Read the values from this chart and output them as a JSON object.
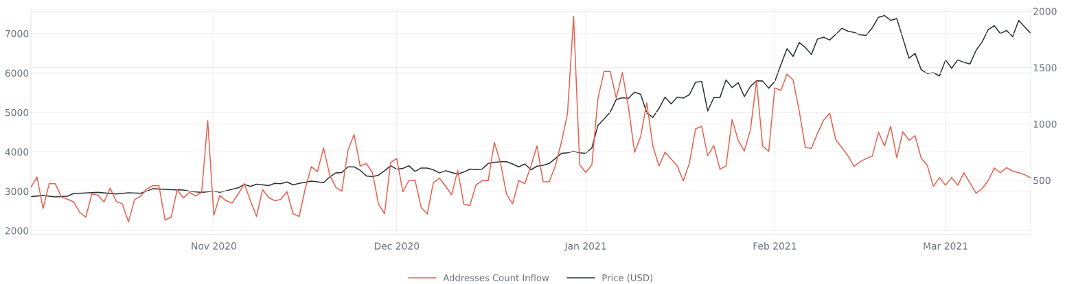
{
  "chart_data": {
    "type": "line",
    "xlim": [
      "2020-10-02",
      "2021-03-15"
    ],
    "xticks": [
      {
        "value": "2020-11-01",
        "label": "Nov 2020"
      },
      {
        "value": "2020-12-01",
        "label": "Dec 2020"
      },
      {
        "value": "2021-01-01",
        "label": "Jan 2021"
      },
      {
        "value": "2021-02-01",
        "label": "Feb 2021"
      },
      {
        "value": "2021-03-01",
        "label": "Mar 2021"
      }
    ],
    "ylim": [
      1900,
      7600
    ],
    "yticks": [
      2000,
      3000,
      4000,
      5000,
      6000,
      7000
    ],
    "y2lim": [
      18,
      2012
    ],
    "y2ticks": [
      500,
      1000,
      1500,
      2000
    ],
    "grid": true,
    "legend": "bottom",
    "marker": "none",
    "line_style": "solid",
    "series": [
      {
        "name": "Addresses Count Inflow",
        "color": "#ea5f4c",
        "axis": "y",
        "x": [
          "2020-10-02",
          "2020-10-03",
          "2020-10-04",
          "2020-10-05",
          "2020-10-06",
          "2020-10-07",
          "2020-10-08",
          "2020-10-09",
          "2020-10-10",
          "2020-10-11",
          "2020-10-12",
          "2020-10-13",
          "2020-10-14",
          "2020-10-15",
          "2020-10-16",
          "2020-10-17",
          "2020-10-18",
          "2020-10-19",
          "2020-10-20",
          "2020-10-21",
          "2020-10-22",
          "2020-10-23",
          "2020-10-24",
          "2020-10-25",
          "2020-10-26",
          "2020-10-27",
          "2020-10-28",
          "2020-10-29",
          "2020-10-30",
          "2020-10-31",
          "2020-11-01",
          "2020-11-02",
          "2020-11-03",
          "2020-11-04",
          "2020-11-05",
          "2020-11-06",
          "2020-11-07",
          "2020-11-08",
          "2020-11-09",
          "2020-11-10",
          "2020-11-11",
          "2020-11-12",
          "2020-11-13",
          "2020-11-14",
          "2020-11-15",
          "2020-11-16",
          "2020-11-17",
          "2020-11-18",
          "2020-11-19",
          "2020-11-20",
          "2020-11-21",
          "2020-11-22",
          "2020-11-23",
          "2020-11-24",
          "2020-11-25",
          "2020-11-26",
          "2020-11-27",
          "2020-11-28",
          "2020-11-29",
          "2020-11-30",
          "2020-12-01",
          "2020-12-02",
          "2020-12-03",
          "2020-12-04",
          "2020-12-05",
          "2020-12-06",
          "2020-12-07",
          "2020-12-08",
          "2020-12-09",
          "2020-12-10",
          "2020-12-11",
          "2020-12-12",
          "2020-12-13",
          "2020-12-14",
          "2020-12-15",
          "2020-12-16",
          "2020-12-17",
          "2020-12-18",
          "2020-12-19",
          "2020-12-20",
          "2020-12-21",
          "2020-12-22",
          "2020-12-23",
          "2020-12-24",
          "2020-12-25",
          "2020-12-26",
          "2020-12-27",
          "2020-12-28",
          "2020-12-29",
          "2020-12-30",
          "2020-12-31",
          "2021-01-01",
          "2021-01-02",
          "2021-01-03",
          "2021-01-04",
          "2021-01-05",
          "2021-01-06",
          "2021-01-07",
          "2021-01-08",
          "2021-01-09",
          "2021-01-10",
          "2021-01-11",
          "2021-01-12",
          "2021-01-13",
          "2021-01-14",
          "2021-01-15",
          "2021-01-16",
          "2021-01-17",
          "2021-01-18",
          "2021-01-19",
          "2021-01-20",
          "2021-01-21",
          "2021-01-22",
          "2021-01-23",
          "2021-01-24",
          "2021-01-25",
          "2021-01-26",
          "2021-01-27",
          "2021-01-28",
          "2021-01-29",
          "2021-01-30",
          "2021-01-31",
          "2021-02-01",
          "2021-02-02",
          "2021-02-03",
          "2021-02-04",
          "2021-02-05",
          "2021-02-06",
          "2021-02-07",
          "2021-02-08",
          "2021-02-09",
          "2021-02-10",
          "2021-02-11",
          "2021-02-13",
          "2021-02-14",
          "2021-02-15",
          "2021-02-16",
          "2021-02-17",
          "2021-02-18",
          "2021-02-19",
          "2021-02-20",
          "2021-02-21",
          "2021-02-22",
          "2021-02-23",
          "2021-02-24",
          "2021-02-25",
          "2021-02-26",
          "2021-02-27",
          "2021-02-28",
          "2021-03-01",
          "2021-03-02",
          "2021-03-03",
          "2021-03-04",
          "2021-03-05",
          "2021-03-06",
          "2021-03-07",
          "2021-03-08",
          "2021-03-09",
          "2021-03-10",
          "2021-03-11",
          "2021-03-12",
          "2021-03-13",
          "2021-03-14",
          "2021-03-15"
        ],
        "values": [
          3100,
          3360,
          2560,
          3190,
          3190,
          2850,
          2800,
          2730,
          2470,
          2340,
          2930,
          2900,
          2730,
          3080,
          2740,
          2680,
          2220,
          2790,
          2870,
          3060,
          3140,
          3140,
          2270,
          2340,
          3040,
          2830,
          2970,
          2880,
          2970,
          4790,
          2390,
          2890,
          2760,
          2700,
          2930,
          3190,
          2760,
          2360,
          3040,
          2840,
          2760,
          2790,
          2990,
          2430,
          2360,
          3070,
          3620,
          3500,
          4100,
          3420,
          3100,
          3000,
          4040,
          4440,
          3640,
          3700,
          3480,
          2680,
          2430,
          3730,
          3830,
          2990,
          3270,
          3280,
          2590,
          2420,
          3220,
          3330,
          3130,
          2910,
          3530,
          2670,
          2640,
          3160,
          3270,
          3270,
          4240,
          3730,
          2930,
          2680,
          3270,
          3190,
          3640,
          4150,
          3240,
          3240,
          3640,
          4240,
          4960,
          7440,
          3670,
          3480,
          3670,
          5360,
          6040,
          6040,
          5360,
          6010,
          5130,
          3990,
          4390,
          5240,
          4150,
          3640,
          3990,
          3820,
          3640,
          3260,
          3720,
          4580,
          4650,
          3900,
          4160,
          3560,
          3640,
          4820,
          4290,
          4020,
          4560,
          5800,
          4150,
          4010,
          5620,
          5560,
          5970,
          5820,
          5040,
          4110,
          4090,
          4470,
          4800,
          4980,
          4310,
          3900,
          3630,
          3750,
          3830,
          3890,
          4500,
          4150,
          4650,
          3850,
          4510,
          4290,
          4410,
          3840,
          3660,
          3120,
          3350,
          3150,
          3350,
          3150,
          3470,
          3210,
          2950,
          3070,
          3270,
          3590,
          3470,
          3600,
          3510,
          3470,
          3420,
          3330
        ]
      },
      {
        "name": "Price (USD)",
        "color": "#2b2f36",
        "axis": "y2",
        "x": [
          "2020-10-02",
          "2020-10-04",
          "2020-10-06",
          "2020-10-08",
          "2020-10-09",
          "2020-10-10",
          "2020-10-13",
          "2020-10-16",
          "2020-10-18",
          "2020-10-20",
          "2020-10-22",
          "2020-10-24",
          "2020-10-27",
          "2020-10-28",
          "2020-10-30",
          "2020-11-01",
          "2020-11-02",
          "2020-11-05",
          "2020-11-06",
          "2020-11-07",
          "2020-11-08",
          "2020-11-10",
          "2020-11-11",
          "2020-11-12",
          "2020-11-13",
          "2020-11-14",
          "2020-11-15",
          "2020-11-17",
          "2020-11-19",
          "2020-11-20",
          "2020-11-21",
          "2020-11-22",
          "2020-11-23",
          "2020-11-24",
          "2020-11-25",
          "2020-11-26",
          "2020-11-27",
          "2020-11-28",
          "2020-11-29",
          "2020-11-30",
          "2020-12-01",
          "2020-12-02",
          "2020-12-03",
          "2020-12-04",
          "2020-12-05",
          "2020-12-06",
          "2020-12-07",
          "2020-12-08",
          "2020-12-09",
          "2020-12-10",
          "2020-12-11",
          "2020-12-12",
          "2020-12-13",
          "2020-12-14",
          "2020-12-15",
          "2020-12-16",
          "2020-12-17",
          "2020-12-18",
          "2020-12-19",
          "2020-12-20",
          "2020-12-21",
          "2020-12-22",
          "2020-12-23",
          "2020-12-24",
          "2020-12-25",
          "2020-12-26",
          "2020-12-27",
          "2020-12-28",
          "2020-12-29",
          "2020-12-30",
          "2020-12-31",
          "2021-01-01",
          "2021-01-02",
          "2021-01-03",
          "2021-01-04",
          "2021-01-05",
          "2021-01-06",
          "2021-01-07",
          "2021-01-08",
          "2021-01-09",
          "2021-01-10",
          "2021-01-11",
          "2021-01-12",
          "2021-01-13",
          "2021-01-14",
          "2021-01-15",
          "2021-01-16",
          "2021-01-17",
          "2021-01-18",
          "2021-01-19",
          "2021-01-20",
          "2021-01-21",
          "2021-01-22",
          "2021-01-23",
          "2021-01-24",
          "2021-01-25",
          "2021-01-26",
          "2021-01-27",
          "2021-01-28",
          "2021-01-29",
          "2021-01-30",
          "2021-01-31",
          "2021-02-01",
          "2021-02-02",
          "2021-02-03",
          "2021-02-04",
          "2021-02-05",
          "2021-02-06",
          "2021-02-07",
          "2021-02-08",
          "2021-02-09",
          "2021-02-10",
          "2021-02-11",
          "2021-02-12",
          "2021-02-13",
          "2021-02-14",
          "2021-02-15",
          "2021-02-16",
          "2021-02-17",
          "2021-02-18",
          "2021-02-19",
          "2021-02-20",
          "2021-02-21",
          "2021-02-22",
          "2021-02-23",
          "2021-02-24",
          "2021-02-25",
          "2021-02-26",
          "2021-02-27",
          "2021-02-28",
          "2021-03-01",
          "2021-03-02",
          "2021-03-03",
          "2021-03-04",
          "2021-03-05",
          "2021-03-06",
          "2021-03-07",
          "2021-03-08",
          "2021-03-09",
          "2021-03-10",
          "2021-03-11",
          "2021-03-12",
          "2021-03-13",
          "2021-03-14",
          "2021-03-15"
        ],
        "values": [
          355,
          365,
          353,
          359,
          383,
          385,
          393,
          379,
          389,
          385,
          425,
          419,
          413,
          403,
          393,
          405,
          393,
          433,
          463,
          445,
          465,
          453,
          473,
          470,
          485,
          459,
          473,
          493,
          479,
          529,
          565,
          569,
          619,
          619,
          589,
          539,
          533,
          545,
          585,
          629,
          599,
          605,
          629,
          579,
          609,
          609,
          593,
          565,
          585,
          569,
          555,
          573,
          599,
          595,
          599,
          649,
          659,
          665,
          665,
          645,
          619,
          645,
          593,
          625,
          633,
          649,
          693,
          739,
          744,
          758,
          744,
          739,
          788,
          988,
          1044,
          1104,
          1218,
          1232,
          1228,
          1283,
          1263,
          1098,
          1058,
          1138,
          1238,
          1178,
          1238,
          1230,
          1260,
          1370,
          1377,
          1115,
          1234,
          1234,
          1391,
          1323,
          1366,
          1243,
          1334,
          1383,
          1381,
          1317,
          1377,
          1526,
          1668,
          1600,
          1723,
          1679,
          1617,
          1753,
          1770,
          1745,
          1796,
          1849,
          1823,
          1813,
          1791,
          1787,
          1855,
          1947,
          1962,
          1919,
          1936,
          1760,
          1583,
          1626,
          1483,
          1447,
          1455,
          1426,
          1568,
          1494,
          1568,
          1547,
          1532,
          1653,
          1728,
          1838,
          1872,
          1802,
          1830,
          1774,
          1919,
          1860,
          1802
        ]
      }
    ]
  }
}
